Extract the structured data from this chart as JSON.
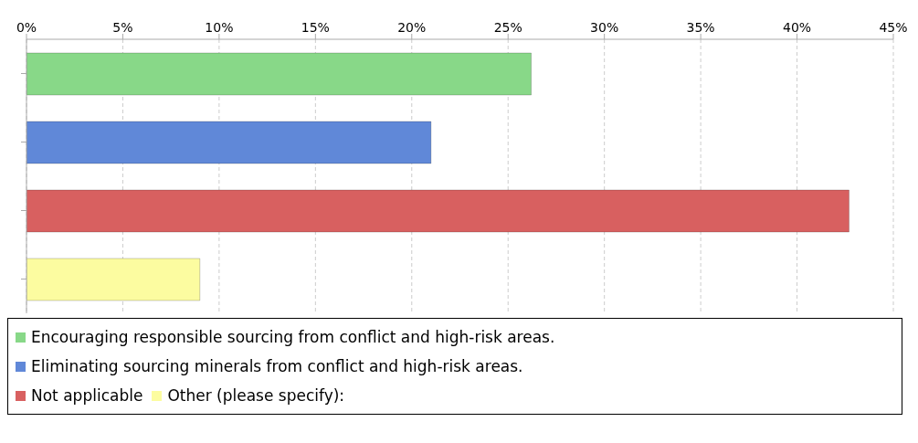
{
  "chart_data": {
    "type": "bar",
    "orientation": "horizontal",
    "categories": [
      null,
      null,
      null,
      null
    ],
    "series": [
      {
        "name": "Encouraging responsible sourcing from conflict and high-risk areas.",
        "color": "#88d888",
        "values": [
          26.2,
          null,
          null,
          null
        ]
      },
      {
        "name": "Eliminating sourcing minerals from conflict and high-risk areas.",
        "color": "#6088d8",
        "values": [
          null,
          21.0,
          null,
          null
        ]
      },
      {
        "name": "Not applicable",
        "color": "#d86060",
        "values": [
          null,
          null,
          42.7,
          null
        ]
      },
      {
        "name": "Other (please specify):",
        "color": "#fcfca0",
        "values": [
          null,
          null,
          null,
          9.0
        ]
      }
    ],
    "xlim": [
      0,
      45
    ],
    "xticks": [
      {
        "value": 0,
        "label": "0%"
      },
      {
        "value": 5,
        "label": "5%"
      },
      {
        "value": 10,
        "label": "10%"
      },
      {
        "value": 15,
        "label": "15%"
      },
      {
        "value": 20,
        "label": "20%"
      },
      {
        "value": 25,
        "label": "25%"
      },
      {
        "value": 30,
        "label": "30%"
      },
      {
        "value": 35,
        "label": "35%"
      },
      {
        "value": 40,
        "label": "40%"
      },
      {
        "value": 45,
        "label": "45%"
      }
    ],
    "grid": "x",
    "legend": "bottom"
  }
}
